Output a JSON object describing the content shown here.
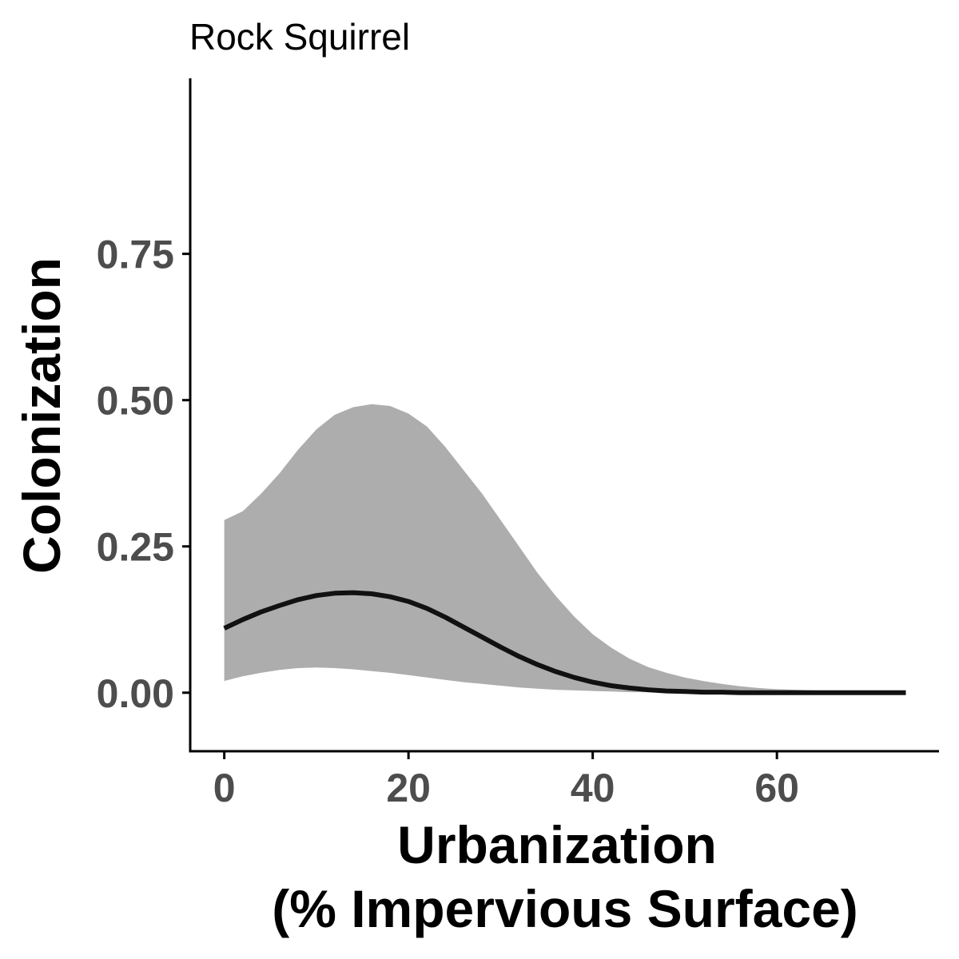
{
  "chart_data": {
    "type": "line",
    "title": "Rock Squirrel",
    "xlabel_lines": [
      "Urbanization",
      "(% Impervious Surface)"
    ],
    "ylabel": "Colonization",
    "xlim": [
      -3.7,
      77.6
    ],
    "ylim": [
      -0.1,
      1.05
    ],
    "x_ticks": [
      0,
      20,
      40,
      60
    ],
    "x_tick_labels": [
      "0",
      "20",
      "40",
      "60"
    ],
    "y_ticks": [
      0,
      0.25,
      0.5,
      0.75
    ],
    "y_tick_labels": [
      "0.00",
      "0.25",
      "0.50",
      "0.75"
    ],
    "grid": false,
    "legend": "none",
    "colors": {
      "line": "#111111",
      "ribbon": "#adadad",
      "axis": "#000000"
    },
    "x": [
      0,
      2,
      4,
      6,
      8,
      10,
      12,
      14,
      16,
      18,
      20,
      22,
      24,
      26,
      28,
      30,
      32,
      34,
      36,
      38,
      40,
      42,
      44,
      46,
      48,
      50,
      52,
      54,
      56,
      58,
      60,
      62,
      64,
      66,
      68,
      70,
      72,
      74
    ],
    "y": [
      0.11,
      0.125,
      0.138,
      0.149,
      0.159,
      0.166,
      0.17,
      0.171,
      0.169,
      0.164,
      0.156,
      0.144,
      0.129,
      0.112,
      0.095,
      0.078,
      0.062,
      0.048,
      0.036,
      0.026,
      0.018,
      0.012,
      0.008,
      0.005,
      0.003,
      0.002,
      0.001,
      0.001,
      0.0,
      0.0,
      0.0,
      0.0,
      0.0,
      0.0,
      0.0,
      0.0,
      0.0,
      0.0
    ],
    "lower": [
      0.02,
      0.028,
      0.034,
      0.039,
      0.042,
      0.043,
      0.042,
      0.04,
      0.037,
      0.034,
      0.03,
      0.026,
      0.022,
      0.018,
      0.015,
      0.012,
      0.009,
      0.007,
      0.005,
      0.004,
      0.003,
      0.002,
      0.001,
      0.001,
      0.001,
      0.0,
      0.0,
      0.0,
      0.0,
      0.0,
      0.0,
      0.0,
      0.0,
      0.0,
      0.0,
      0.0,
      0.0,
      0.0
    ],
    "upper": [
      0.295,
      0.31,
      0.34,
      0.375,
      0.415,
      0.45,
      0.475,
      0.488,
      0.493,
      0.49,
      0.477,
      0.455,
      0.42,
      0.38,
      0.34,
      0.295,
      0.25,
      0.205,
      0.165,
      0.13,
      0.1,
      0.077,
      0.058,
      0.044,
      0.034,
      0.026,
      0.02,
      0.015,
      0.011,
      0.008,
      0.006,
      0.005,
      0.004,
      0.003,
      0.002,
      0.002,
      0.001,
      0.001
    ]
  }
}
